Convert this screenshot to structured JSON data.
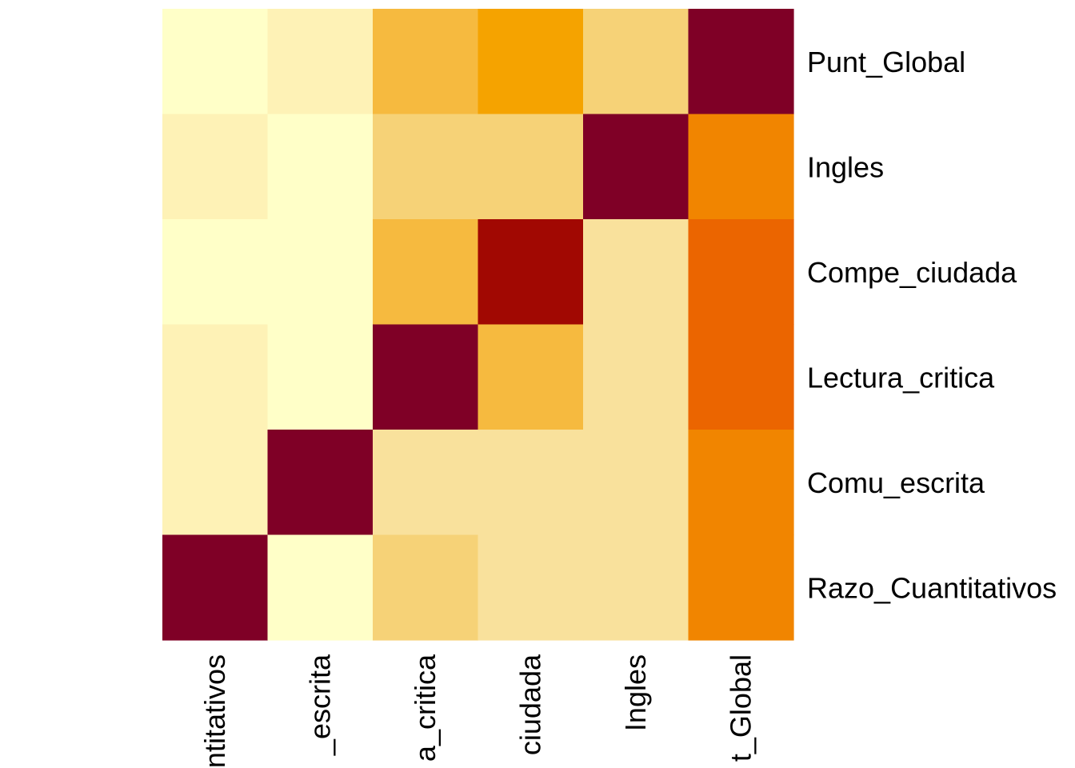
{
  "chart_data": {
    "type": "heatmap",
    "title": "",
    "xlabel": "",
    "ylabel": "",
    "legend": "none",
    "grid": false,
    "colors": {
      "L0": "#FFFFC8",
      "L1": "#FEF2B6",
      "L2": "#F9E19C",
      "L3": "#F6D277",
      "L4": "#F6BA3F",
      "L5": "#F5A300",
      "L6": "#F18500",
      "L7": "#EB6500",
      "L8": "#A10802",
      "L9": "#7F0026"
    },
    "columns": [
      "Razo_Cuantitativos",
      "Comu_escrita",
      "Lectura_critica",
      "Compe_ciudada",
      "Ingles",
      "Punt_Global"
    ],
    "column_tick_labels": [
      "ntitativos",
      "_escrita",
      "a_critica",
      "ciudada",
      "Ingles",
      "t_Global"
    ],
    "rows": [
      "Punt_Global",
      "Ingles",
      "Compe_ciudada",
      "Lectura_critica",
      "Comu_escrita",
      "Razo_Cuantitativos"
    ],
    "row_tick_labels": [
      "Punt_Global",
      "Ingles",
      "Compe_ciudada",
      "Lectura_critica",
      "Comu_escrita",
      "Razo_Cuantitativos"
    ],
    "color_levels": [
      [
        "L0",
        "L1",
        "L4",
        "L5",
        "L3",
        "L9"
      ],
      [
        "L1",
        "L0",
        "L3",
        "L3",
        "L9",
        "L6"
      ],
      [
        "L0",
        "L0",
        "L4",
        "L8",
        "L2",
        "L7"
      ],
      [
        "L1",
        "L0",
        "L9",
        "L4",
        "L2",
        "L7"
      ],
      [
        "L1",
        "L9",
        "L2",
        "L2",
        "L2",
        "L6"
      ],
      [
        "L9",
        "L0",
        "L3",
        "L2",
        "L2",
        "L6"
      ]
    ]
  }
}
